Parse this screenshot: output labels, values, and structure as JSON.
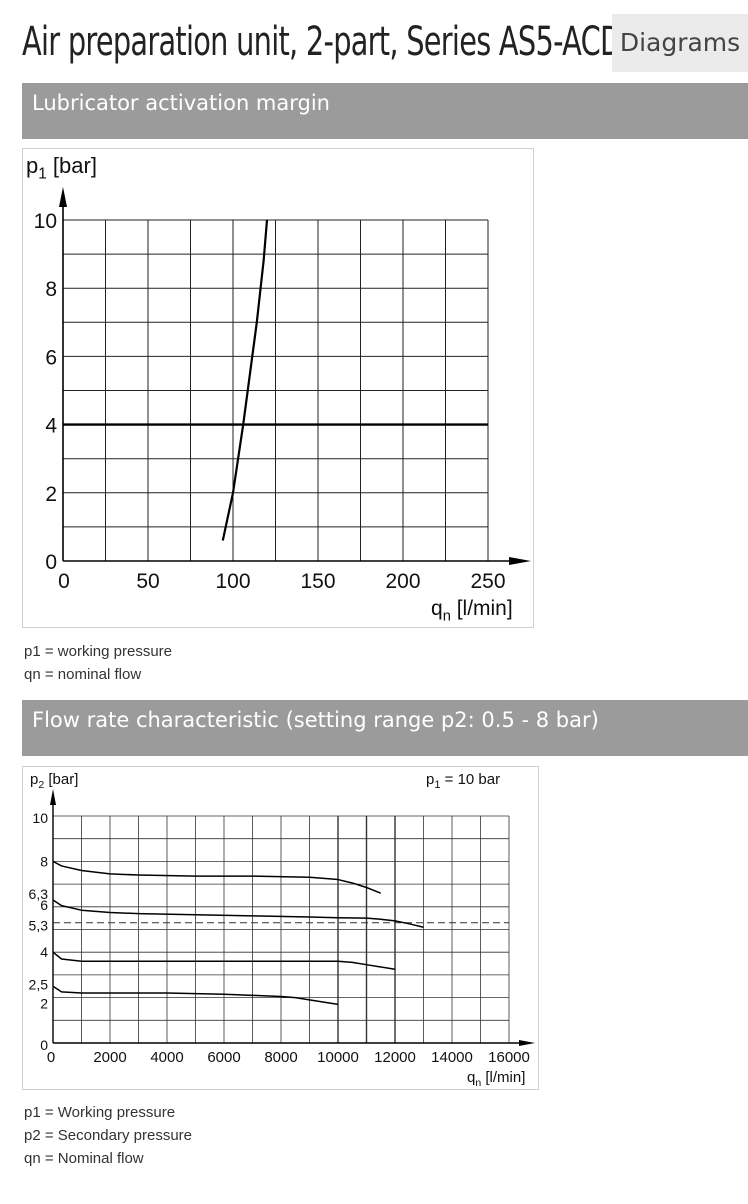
{
  "header": {
    "title": "Air preparation unit, 2-part, Series AS5-ACD",
    "section": "Diagrams"
  },
  "sections": [
    {
      "heading": "Lubricator activation margin",
      "legend": [
        "p1 = working pressure",
        "qn = nominal flow"
      ]
    },
    {
      "heading": "Flow rate characteristic (setting range p2: 0.5 - 8 bar)",
      "legend": [
        "p1 = Working pressure",
        "p2 = Secondary pressure",
        "qn = Nominal flow"
      ]
    }
  ],
  "chart_data": [
    {
      "type": "line",
      "title": "",
      "ylabel_sym": "p",
      "ylabel_sub": "1",
      "ylabel_unit": "[bar]",
      "xlabel_sym": "q",
      "xlabel_sub": "n",
      "xlabel_unit": "[l/min]",
      "xlim": [
        0,
        250
      ],
      "ylim": [
        0,
        10
      ],
      "x_ticks": [
        "0",
        "50",
        "100",
        "150",
        "200",
        "250"
      ],
      "y_ticks": [
        "0",
        "2",
        "4",
        "6",
        "8",
        "10"
      ],
      "grid": true,
      "reference_line": {
        "y": 4
      },
      "series": [
        {
          "x": [
            94,
            100,
            103,
            106,
            110,
            114,
            118,
            120
          ],
          "y": [
            0.6,
            2,
            3,
            4,
            5.5,
            7,
            8.8,
            10
          ]
        }
      ]
    },
    {
      "type": "line",
      "title": "",
      "ylabel_sym": "p",
      "ylabel_sub": "2",
      "ylabel_unit": "[bar]",
      "annotation_sym": "p",
      "annotation_sub": "1",
      "annotation_value": "= 10 bar",
      "xlabel_sym": "q",
      "xlabel_sub": "n",
      "xlabel_unit": "[l/min]",
      "xlim": [
        0,
        16000
      ],
      "ylim": [
        0,
        10
      ],
      "x_ticks": [
        "0",
        "2000",
        "4000",
        "6000",
        "8000",
        "10000",
        "12000",
        "14000",
        "16000"
      ],
      "y_ticks": [
        "0",
        "2",
        "2,5",
        "4",
        "5,3",
        "6",
        "6,3",
        "8",
        "10"
      ],
      "grid": true,
      "dashed_line": {
        "y": 5.3
      },
      "series": [
        {
          "x": [
            0,
            300,
            1000,
            2000,
            3000,
            5000,
            7000,
            9000,
            10000,
            10500,
            11000,
            11500
          ],
          "y": [
            8,
            7.8,
            7.6,
            7.45,
            7.4,
            7.35,
            7.35,
            7.3,
            7.2,
            7.05,
            6.85,
            6.6
          ]
        },
        {
          "x": [
            0,
            300,
            1000,
            2000,
            3000,
            5000,
            7000,
            9000,
            10000,
            11000,
            11500,
            12000,
            12500,
            13000
          ],
          "y": [
            6.3,
            6.05,
            5.85,
            5.75,
            5.7,
            5.65,
            5.6,
            5.55,
            5.52,
            5.5,
            5.45,
            5.38,
            5.25,
            5.1
          ]
        },
        {
          "x": [
            0,
            300,
            1000,
            2000,
            4000,
            6000,
            8000,
            10000,
            10500,
            11000,
            11500,
            12000
          ],
          "y": [
            4,
            3.7,
            3.6,
            3.6,
            3.6,
            3.6,
            3.6,
            3.6,
            3.55,
            3.45,
            3.35,
            3.25
          ]
        },
        {
          "x": [
            0,
            300,
            1000,
            2000,
            4000,
            6000,
            7000,
            8000,
            8500,
            9000,
            9500,
            10000
          ],
          "y": [
            2.5,
            2.25,
            2.2,
            2.2,
            2.2,
            2.15,
            2.1,
            2.05,
            2.0,
            1.9,
            1.8,
            1.7
          ]
        }
      ]
    }
  ]
}
